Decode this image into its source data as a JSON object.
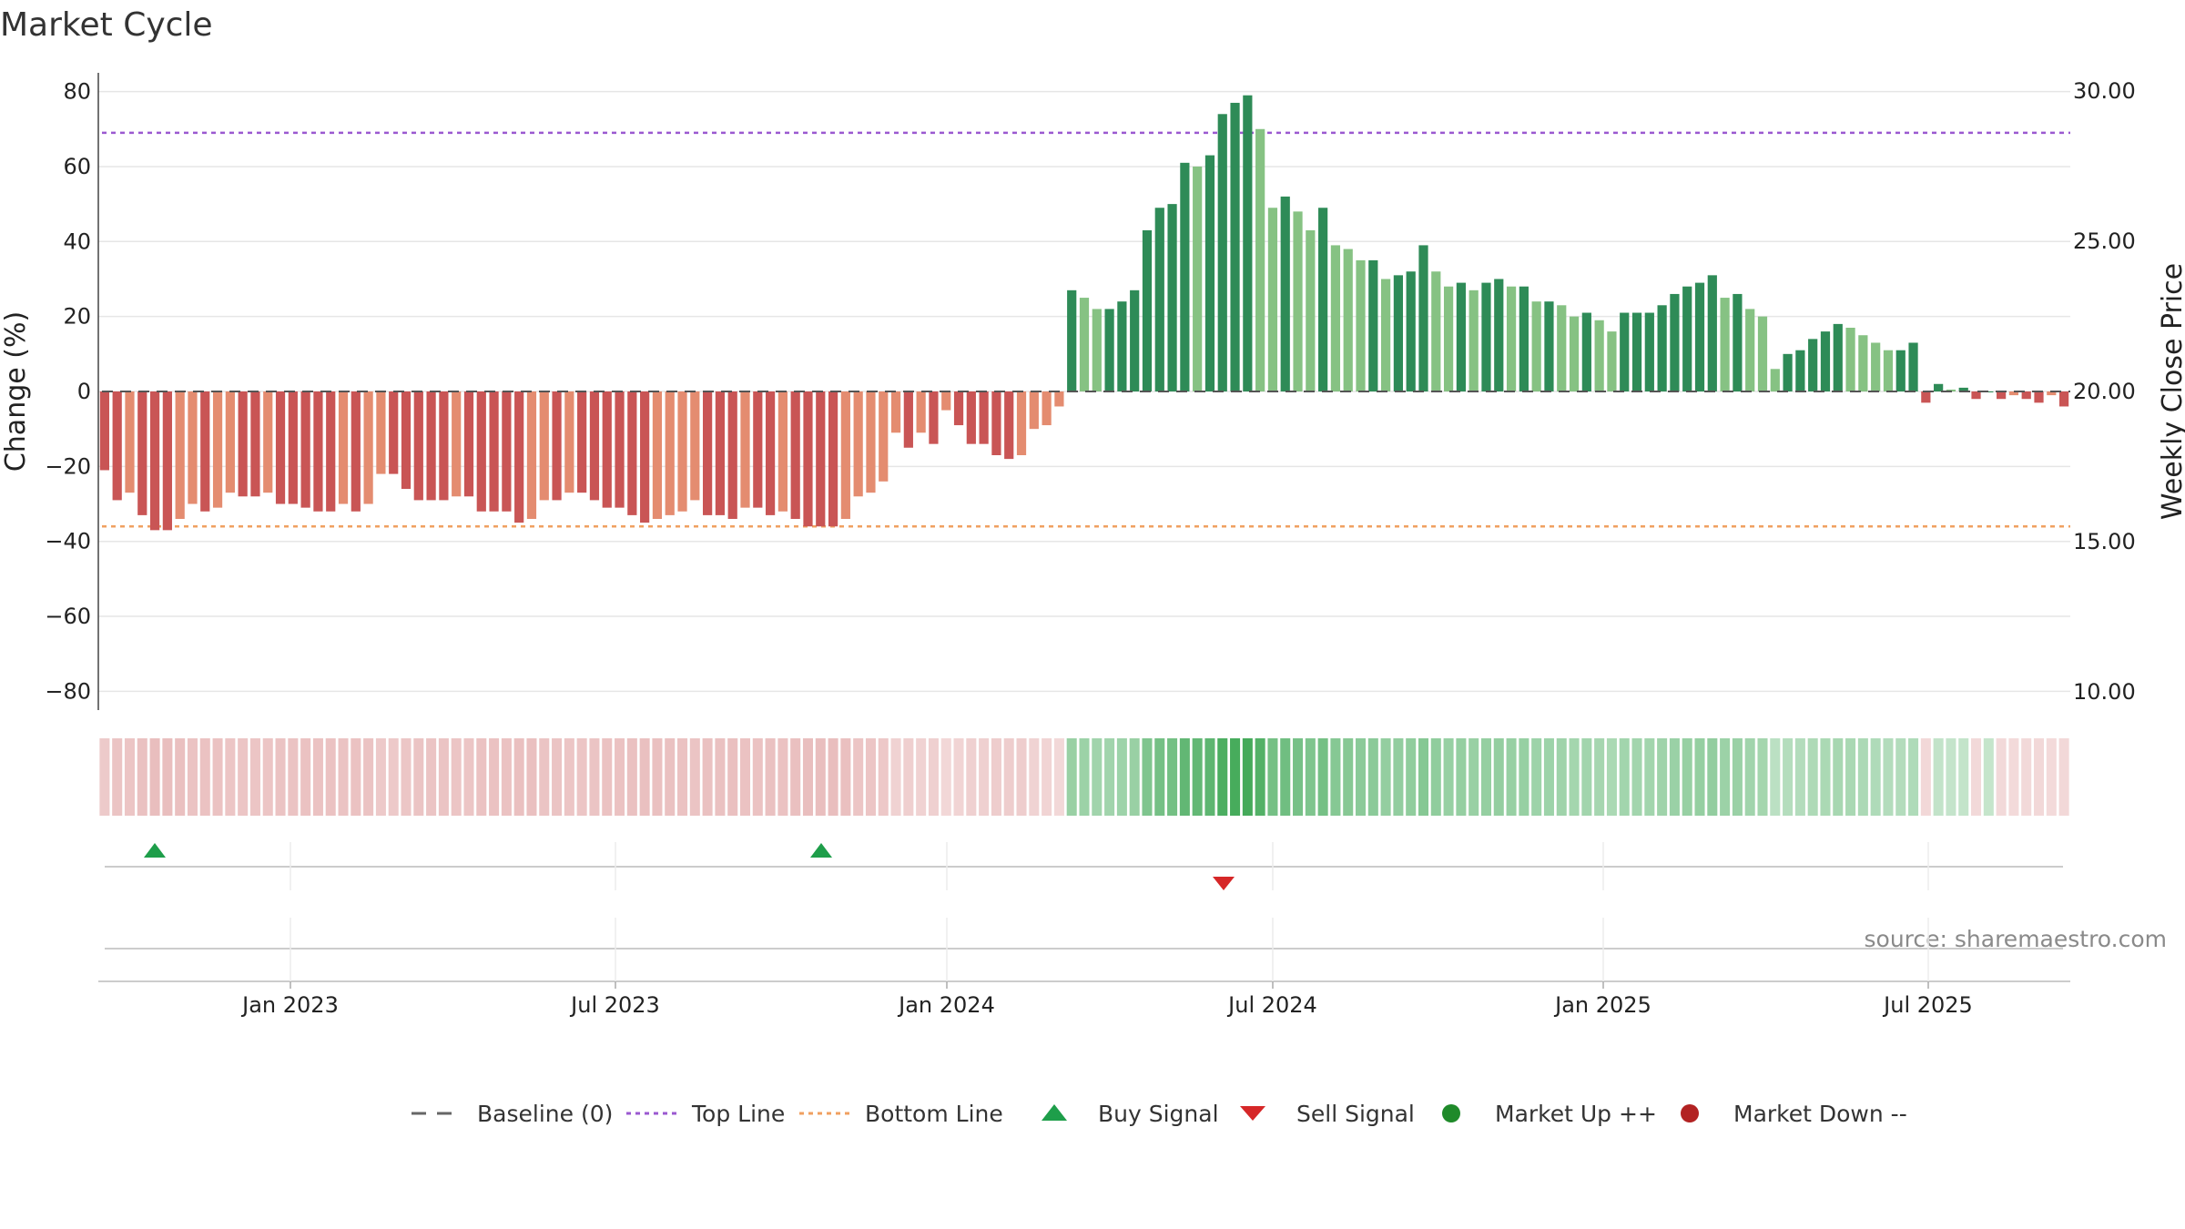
{
  "chart_data": {
    "type": "bar",
    "title": "Market Cycle",
    "ylabel": "Change (%)",
    "y2label": "Weekly Close Price",
    "ylim": [
      -85,
      85
    ],
    "y2lim": [
      10,
      30
    ],
    "yticks": [
      "80",
      "60",
      "40",
      "20",
      "0",
      "−20",
      "−40",
      "−60",
      "−80"
    ],
    "y2ticks": [
      "30.00",
      "25.00",
      "20.00",
      "15.00",
      "10.00"
    ],
    "xticks": [
      "Jan 2023",
      "Jul 2023",
      "Jan 2024",
      "Jul 2024",
      "Jan 2025",
      "Jul 2025"
    ],
    "top_line": 69,
    "bottom_line": -36,
    "baseline": 0,
    "series": [
      {
        "name": "Change (%)",
        "values": [
          -21,
          -29,
          -27,
          -33,
          -37,
          -37,
          -34,
          -30,
          -32,
          -31,
          -27,
          -28,
          -28,
          -27,
          -30,
          -30,
          -31,
          -32,
          -32,
          -30,
          -32,
          -30,
          -22,
          -22,
          -26,
          -29,
          -29,
          -29,
          -28,
          -28,
          -32,
          -32,
          -32,
          -35,
          -34,
          -29,
          -29,
          -27,
          -27,
          -29,
          -31,
          -31,
          -33,
          -35,
          -34,
          -33,
          -32,
          -29,
          -33,
          -33,
          -34,
          -31,
          -31,
          -33,
          -32,
          -34,
          -36,
          -36,
          -36,
          -34,
          -28,
          -27,
          -24,
          -11,
          -15,
          -11,
          -14,
          -5,
          -9,
          -14,
          -14,
          -17,
          -18,
          -17,
          -10,
          -9,
          -4,
          27,
          25,
          22,
          22,
          24,
          27,
          43,
          49,
          50,
          61,
          60,
          63,
          74,
          77,
          79,
          70,
          49,
          52,
          48,
          43,
          49,
          39,
          38,
          35,
          35,
          30,
          31,
          32,
          39,
          32,
          28,
          29,
          27,
          29,
          30,
          28,
          28,
          24,
          24,
          23,
          20,
          21,
          19,
          16,
          21,
          21,
          21,
          23,
          26,
          28,
          29,
          31,
          25,
          26,
          22,
          20,
          6,
          10,
          11,
          14,
          16,
          18,
          17,
          15,
          13,
          11,
          11,
          13,
          -3,
          2,
          0.5,
          1,
          -2,
          0,
          -2,
          -1,
          -2,
          -3,
          -1,
          -4
        ]
      }
    ],
    "buy_signals": [
      "Nov 2022",
      "Oct 2023"
    ],
    "sell_signals": [
      "Jun 2024"
    ],
    "source": "source: sharemaestro.com",
    "legend": [
      {
        "label": "Baseline (0)",
        "kind": "baseline",
        "color": "#666666"
      },
      {
        "label": "Top Line",
        "kind": "top",
        "color": "#9b59d0"
      },
      {
        "label": "Bottom Line",
        "kind": "bottom",
        "color": "#f0a060"
      },
      {
        "label": "Buy Signal",
        "kind": "buy",
        "color": "#1e9e4a"
      },
      {
        "label": "Sell Signal",
        "kind": "sell",
        "color": "#d62728"
      },
      {
        "label": "Market Up ++",
        "kind": "up",
        "color": "#1f8a2a"
      },
      {
        "label": "Market Down --",
        "kind": "down",
        "color": "#b22222"
      }
    ],
    "colors": {
      "neg_dark": "#c95555",
      "neg_light": "#e48c70",
      "pos_dark": "#2e8b57",
      "pos_light": "#86c283",
      "grid": "#e6e6e6",
      "axis": "#444444"
    }
  }
}
